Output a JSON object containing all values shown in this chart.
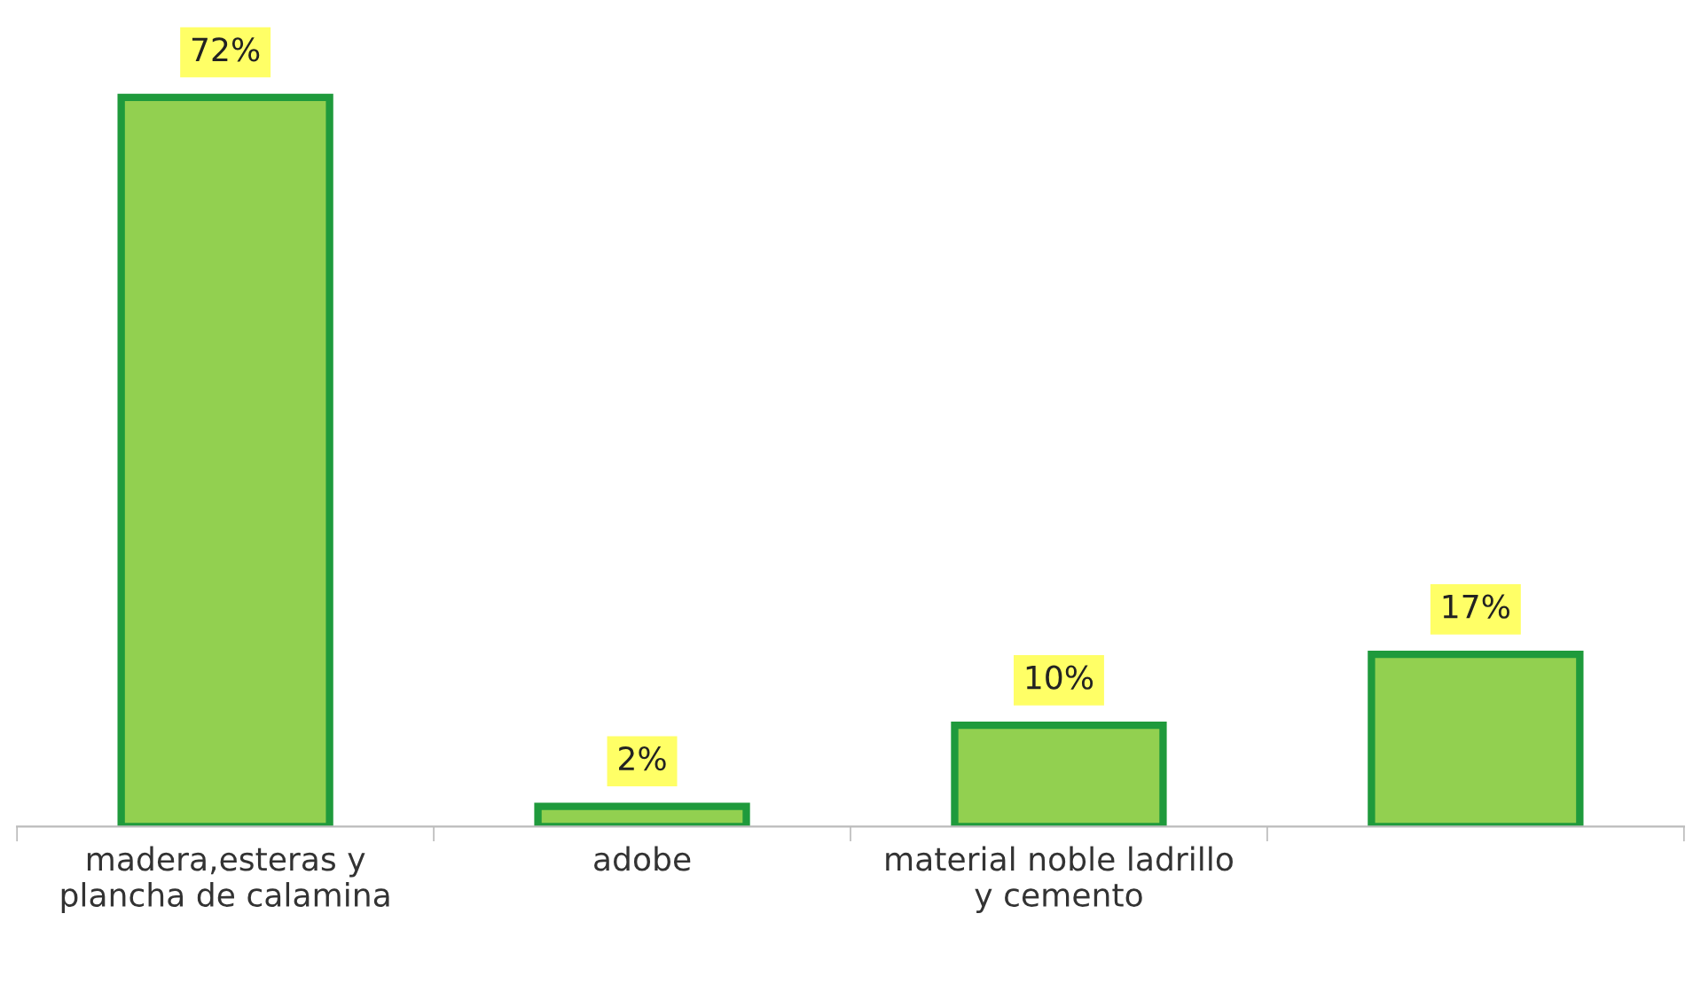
{
  "chart_data": {
    "type": "bar",
    "categories": [
      "madera,esteras y\nplancha de calamina",
      "adobe",
      "material noble ladrillo\ny cemento",
      null
    ],
    "values": [
      72,
      2,
      10,
      17
    ],
    "color": "#92d050",
    "value_labels": [
      "72%",
      "2%",
      "10%",
      "17%"
    ],
    "grid": false,
    "legend": false
  }
}
